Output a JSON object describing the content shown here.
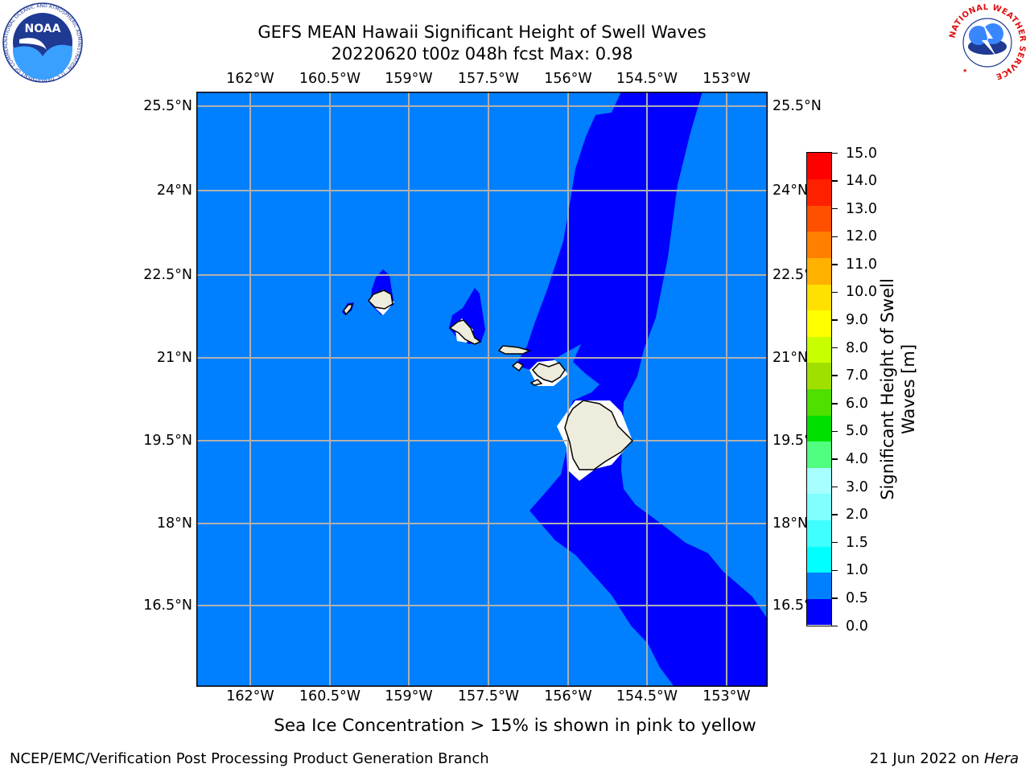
{
  "title": {
    "line1": "GEFS MEAN Hawaii Significant Height of Swell Waves",
    "line2": "20220620 t00z 048h fcst   Max: 0.98"
  },
  "longitude_labels": [
    "162°W",
    "160.5°W",
    "159°W",
    "157.5°W",
    "156°W",
    "154.5°W",
    "153°W"
  ],
  "latitude_labels": [
    "25.5°N",
    "24°N",
    "22.5°N",
    "21°N",
    "19.5°N",
    "18°N",
    "16.5°N"
  ],
  "colorbar": {
    "label_line1": "Significant Height of Swell",
    "label_line2": "Waves [m]",
    "tick_labels": [
      "0.0",
      "0.5",
      "1.0",
      "1.5",
      "2.0",
      "3.0",
      "4.0",
      "5.0",
      "6.0",
      "7.0",
      "8.0",
      "9.0",
      "10.0",
      "11.0",
      "12.0",
      "13.0",
      "14.0",
      "15.0"
    ],
    "colors": [
      "#0000ff",
      "#0080ff",
      "#00ffff",
      "#40ffff",
      "#80ffff",
      "#a8ffff",
      "#50ff80",
      "#00e000",
      "#50e000",
      "#a0e000",
      "#c8ff00",
      "#ffff00",
      "#ffe000",
      "#ffb000",
      "#ff8000",
      "#ff5000",
      "#ff2000",
      "#ff0000"
    ]
  },
  "legend_colors": {
    "ocean_below_0_5": "#0000ff",
    "ocean_0_5_to_1_0": "#0080ff",
    "land": "#eeecdc"
  },
  "footnote": "Sea Ice Concentration > 15% is shown in pink to yellow",
  "footer": {
    "left": "NCEP/EMC/Verification Post Processing Product Generation Branch",
    "right_prefix": "21 Jun 2022 on ",
    "right_host": "Hera"
  },
  "logos": {
    "noaa_text": "NOAA",
    "noaa_ring_text": "NATIONAL OCEANIC AND ATMOSPHERIC ADMINISTRATION · U.S. DEPARTMENT OF COMMERCE",
    "nws_ring_text": "NATIONAL WEATHER SERVICE"
  }
}
